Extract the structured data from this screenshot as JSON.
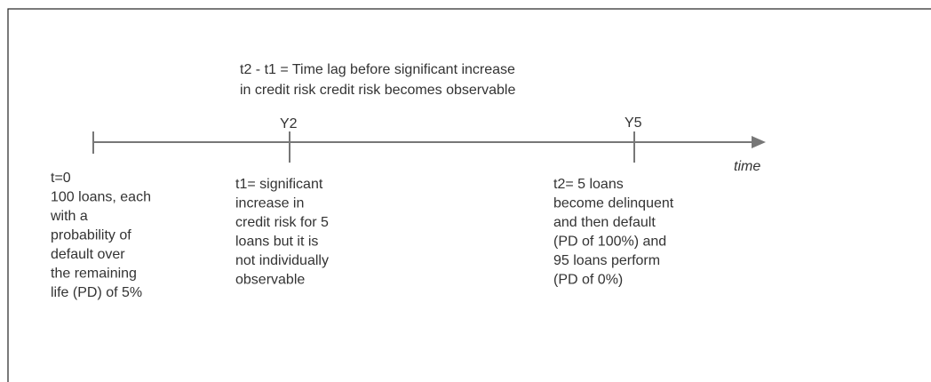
{
  "header": {
    "lines": [
      "t2 - t1 = Time lag before significant increase",
      "in credit risk credit risk becomes observable"
    ]
  },
  "timeline": {
    "markers": [
      "Y2",
      "Y5"
    ],
    "axis_label": "time"
  },
  "events": [
    {
      "lines": [
        "t=0",
        "100 loans, each",
        "with a",
        "probability of",
        "default over",
        "the remaining",
        "life (PD) of 5%"
      ]
    },
    {
      "lines": [
        "t1= significant",
        "increase in",
        "credit risk for 5",
        "loans but it is",
        "not individually",
        "observable"
      ]
    },
    {
      "lines": [
        "t2=  5 loans",
        "become delinquent",
        "and then default",
        "(PD of 100%) and",
        "95 loans perform",
        "(PD of 0%)"
      ]
    }
  ]
}
